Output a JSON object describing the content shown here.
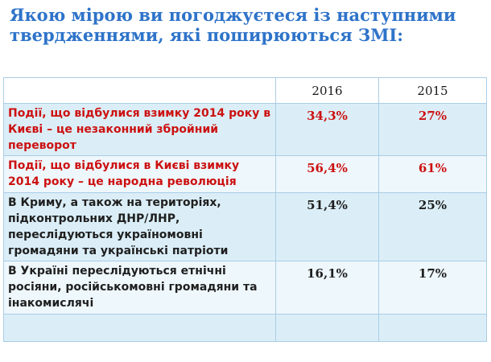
{
  "title": "Якою мірою ви погоджуєтеся із наступними твердженнями, які поширюються ЗМІ:",
  "chart_data": {
    "type": "table",
    "columns": [
      "",
      "2016",
      "2015"
    ],
    "rows": [
      {
        "statement": "Події, що відбулися взимку 2014 року в Києві – це незаконний збройний переворот",
        "v2016": "34,3%",
        "v2015": "27%",
        "color": "#cc1111"
      },
      {
        "statement": "Події, що відбулися в Києві взимку 2014 року – це народна революція",
        "v2016": "56,4%",
        "v2015": "61%",
        "color": "#cc1111"
      },
      {
        "statement": "В Криму, а також на територіях, підконтрольних ДНР/ЛНР, переслідуються україномовні громадяни та українські патріоти",
        "v2016": "51,4%",
        "v2015": "25%",
        "color": "#1f1f1f"
      },
      {
        "statement": "В Україні переслідуються етнічні росіяни, російськомовні громадяни та інакомислячі",
        "v2016": "16,1%",
        "v2015": "17%",
        "color": "#1f1f1f"
      }
    ],
    "series": [
      {
        "name": "2016",
        "values": [
          34.3,
          56.4,
          51.4,
          16.1
        ]
      },
      {
        "name": "2015",
        "values": [
          27,
          61,
          25,
          17
        ]
      }
    ]
  }
}
